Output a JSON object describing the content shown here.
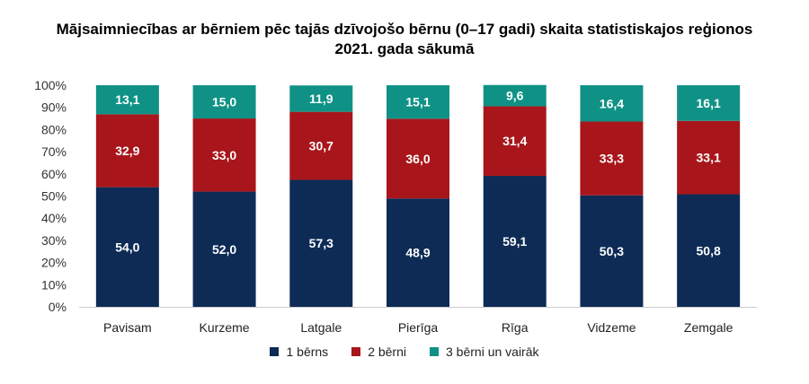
{
  "chart_data": {
    "type": "bar",
    "stacked": true,
    "title": "Mājsaimniecības ar bērniem pēc tajās dzīvojošo bērnu (0–17 gadi) skaita statistiskajos reģionos",
    "subtitle": "2021. gada sākumā",
    "categories": [
      "Pavisam",
      "Kurzeme",
      "Latgale",
      "Pierīga",
      "Rīga",
      "Vidzeme",
      "Zemgale"
    ],
    "series": [
      {
        "name": "1 bērns",
        "color": "#0d2b55",
        "values": [
          54.0,
          52.0,
          57.3,
          48.9,
          59.1,
          50.3,
          50.8
        ],
        "labels": [
          "54,0",
          "52,0",
          "57,3",
          "48,9",
          "59,1",
          "50,3",
          "50,8"
        ]
      },
      {
        "name": "2 bērni",
        "color": "#a8161b",
        "values": [
          32.9,
          33.0,
          30.7,
          36.0,
          31.4,
          33.3,
          33.1
        ],
        "labels": [
          "32,9",
          "33,0",
          "30,7",
          "36,0",
          "31,4",
          "33,3",
          "33,1"
        ]
      },
      {
        "name": "3 bērni un vairāk",
        "color": "#0f9285",
        "values": [
          13.1,
          15.0,
          11.9,
          15.1,
          9.6,
          16.4,
          16.1
        ],
        "labels": [
          "13,1",
          "15,0",
          "11,9",
          "15,1",
          "9,6",
          "16,4",
          "16,1"
        ]
      }
    ],
    "ylim": [
      0,
      100
    ],
    "yticks": [
      "0%",
      "10%",
      "20%",
      "30%",
      "40%",
      "50%",
      "60%",
      "70%",
      "80%",
      "90%",
      "100%"
    ],
    "grid": false,
    "legend_position": "bottom"
  }
}
